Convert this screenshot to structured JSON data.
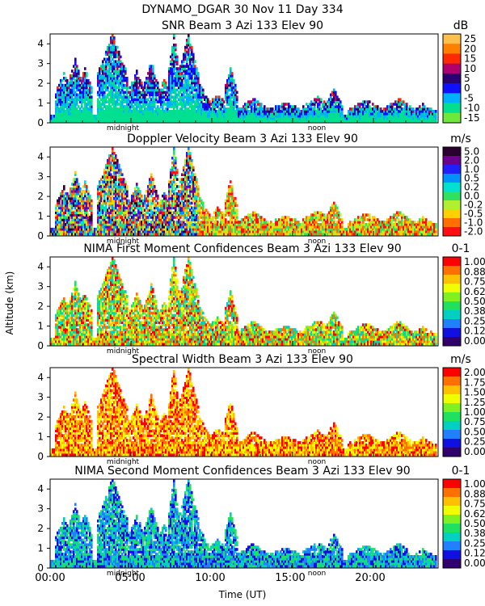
{
  "header": {
    "title": "DYNAMO_DGAR  30 Nov 11 Day 334"
  },
  "y_axis_label": "Altitude (km)",
  "x_axis_label": "Time (UT)",
  "x_ticks": [
    "00:00",
    "05:00",
    "10:00",
    "15:00",
    "20:00"
  ],
  "markers": {
    "midnight": "midnight",
    "noon": "noon"
  },
  "chart_data": [
    {
      "type": "heatmap",
      "title": "SNR Beam 3 Azi 133 Elev 90",
      "unit": "dB",
      "xlim_hours": [
        0,
        24
      ],
      "ylim_km": [
        0,
        4.5
      ],
      "y_ticks": [
        "0",
        "1",
        "2",
        "3",
        "4"
      ],
      "colorbar": {
        "labels": [
          "25",
          "20",
          "15",
          "10",
          "5",
          "0",
          "-5",
          "-10",
          "-15"
        ],
        "colors": [
          "#ffc04d",
          "#ff8000",
          "#ff2a00",
          "#b0006e",
          "#2a0070",
          "#1010ff",
          "#00b0ff",
          "#00e090",
          "#6ee83a"
        ]
      }
    },
    {
      "type": "heatmap",
      "title": "Doppler Velocity Beam 3 Azi 133 Elev 90",
      "unit": "m/s",
      "xlim_hours": [
        0,
        24
      ],
      "ylim_km": [
        0,
        4.5
      ],
      "y_ticks": [
        "0",
        "1",
        "2",
        "3",
        "4"
      ],
      "colorbar": {
        "labels": [
          "5.0",
          "2.0",
          "1.0",
          "0.5",
          "0.2",
          "0.0",
          "-0.2",
          "-0.5",
          "-1.0",
          "-2.0"
        ],
        "colors": [
          "#2a0030",
          "#6e0090",
          "#2020ff",
          "#0090ff",
          "#00e0d0",
          "#30e060",
          "#b0f030",
          "#ffd000",
          "#ff7000",
          "#ff1010"
        ]
      }
    },
    {
      "type": "heatmap",
      "title": "NIMA First Moment Confidences Beam 3 Azi 133 Elev 90",
      "unit": "0-1",
      "xlim_hours": [
        0,
        24
      ],
      "ylim_km": [
        0,
        4.5
      ],
      "y_ticks": [
        "0",
        "1",
        "2",
        "3",
        "4"
      ],
      "colorbar": {
        "labels": [
          "1.00",
          "0.88",
          "0.75",
          "0.62",
          "0.50",
          "0.38",
          "0.25",
          "0.12",
          "0.00"
        ],
        "colors": [
          "#ff0000",
          "#ff7000",
          "#ffc000",
          "#f0ff00",
          "#80f020",
          "#20e060",
          "#00d0c0",
          "#2080ff",
          "#1010e0",
          "#30006e"
        ]
      }
    },
    {
      "type": "heatmap",
      "title": "Spectral Width Beam 3 Azi 133 Elev 90",
      "unit": "m/s",
      "xlim_hours": [
        0,
        24
      ],
      "ylim_km": [
        0,
        4.5
      ],
      "y_ticks": [
        "0",
        "1",
        "2",
        "3",
        "4"
      ],
      "colorbar": {
        "labels": [
          "2.00",
          "1.75",
          "1.50",
          "1.25",
          "1.00",
          "0.75",
          "0.50",
          "0.25",
          "0.00"
        ],
        "colors": [
          "#ff0000",
          "#ff7000",
          "#ffc000",
          "#f0ff00",
          "#80f020",
          "#20e060",
          "#00d0c0",
          "#2080ff",
          "#1010e0",
          "#30006e"
        ]
      }
    },
    {
      "type": "heatmap",
      "title": "NIMA Second Moment Confidences Beam 3 Azi 133 Elev 90",
      "unit": "0-1",
      "xlim_hours": [
        0,
        24
      ],
      "ylim_km": [
        0,
        4.5
      ],
      "y_ticks": [
        "0",
        "1",
        "2",
        "3",
        "4"
      ],
      "colorbar": {
        "labels": [
          "1.00",
          "0.88",
          "0.75",
          "0.62",
          "0.50",
          "0.38",
          "0.25",
          "0.12",
          "0.00"
        ],
        "colors": [
          "#ff0000",
          "#ff7000",
          "#ffc000",
          "#f0ff00",
          "#80f020",
          "#20e060",
          "#00d0c0",
          "#2080ff",
          "#1010e0",
          "#30006e"
        ]
      }
    }
  ]
}
